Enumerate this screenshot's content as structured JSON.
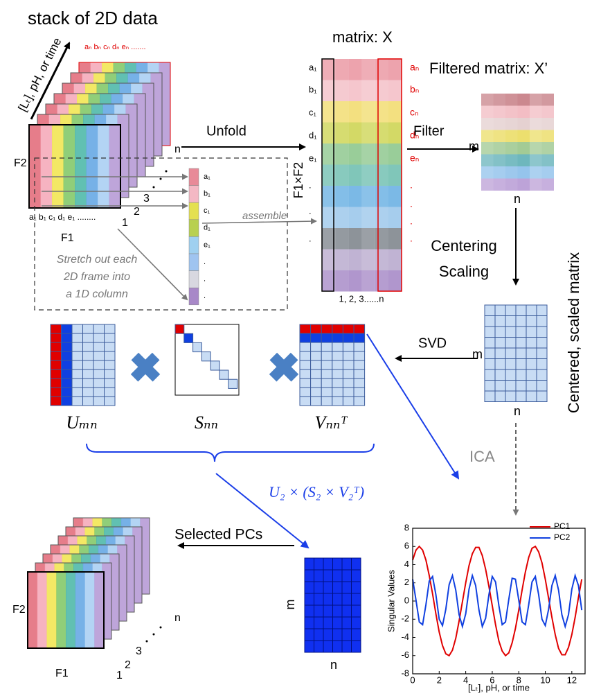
{
  "stack_panel": {
    "title": "stack of 2D data",
    "axis_label": "[Lₜ], pH, or time",
    "top_labels": "aₙ bₙ cₙ dₙ eₙ .......",
    "depth_label": "n",
    "f2": "F2",
    "f1": "F1",
    "front_labels": "a₁ b₁ c₁ d₁ e₁ ........",
    "frame_numbers": [
      "1",
      "2",
      "3"
    ]
  },
  "stretch_box": {
    "caption": [
      "Stretch out each",
      "2D frame into",
      "a 1D column"
    ],
    "column_labels": [
      "a₁",
      "b₁",
      "c₁",
      "d₁",
      "e₁",
      ".",
      ".",
      "."
    ],
    "assemble": "assemble"
  },
  "unfold": "Unfold",
  "matrix_x": {
    "title": "matrix: X",
    "row_label": "F1×F2",
    "left_labels": [
      "a₁",
      "b₁",
      "c₁",
      "d₁",
      "e₁",
      ".",
      ".",
      "."
    ],
    "right_labels": [
      "aₙ",
      "bₙ",
      "cₙ",
      "dₙ",
      "eₙ",
      ".",
      ".",
      ".",
      "."
    ],
    "column_label": "1, 2, 3......n"
  },
  "filter": "Filter",
  "filtered_matrix": {
    "title": "Filtered matrix: X’",
    "m": "m",
    "n": "n"
  },
  "centering": [
    "Centering",
    "Scaling"
  ],
  "centered_matrix": {
    "title": "Centered, scaled matrix",
    "m": "m",
    "n": "n"
  },
  "svd": "SVD",
  "svd_labels": [
    "Uₘₙ",
    "Sₙₙ",
    "Vₙₙᵀ"
  ],
  "reconstruction": "U₂ × (S₂ × V₂ᵀ)",
  "ica": "ICA",
  "selected": {
    "label": "Selected PCs",
    "m": "m",
    "n": "n"
  },
  "output_stack": {
    "f2": "F2",
    "f1": "F1",
    "frame_numbers": [
      "1",
      "2",
      "3"
    ],
    "depth_label": "n"
  },
  "inset_chart": {
    "type": "line",
    "x_label": "[Lₜ], pH, or time",
    "y_label": "Singular Values",
    "legend": "upper right",
    "x": [
      0,
      0.25,
      0.5,
      0.75,
      1,
      1.25,
      1.5,
      1.75,
      2,
      2.25,
      2.5,
      2.75,
      3,
      3.25,
      3.5,
      3.75,
      4,
      4.25,
      4.5,
      4.75,
      5,
      5.25,
      5.5,
      5.75,
      6,
      6.25,
      6.5,
      6.75,
      7,
      7.25,
      7.5,
      7.75,
      8,
      8.25,
      8.5,
      8.75,
      9,
      9.25,
      9.5,
      9.75,
      10,
      10.25,
      10.5,
      10.75,
      11,
      11.25,
      11.5,
      11.75,
      12,
      12.25,
      12.5,
      12.75
    ],
    "series": [
      {
        "name": "PC1",
        "color": "#e00000",
        "values": [
          4.5,
          5.6,
          6.0,
          5.6,
          4.5,
          2.8,
          0.8,
          -1.4,
          -3.4,
          -4.9,
          -5.8,
          -6.0,
          -5.4,
          -4.1,
          -2.2,
          -0.1,
          2.0,
          3.9,
          5.2,
          5.9,
          5.9,
          5.0,
          3.5,
          1.6,
          -0.5,
          -2.6,
          -4.4,
          -5.5,
          -6.0,
          -5.7,
          -4.6,
          -3.0,
          -1.0,
          1.2,
          3.2,
          4.8,
          5.8,
          6.0,
          5.4,
          4.2,
          2.4,
          0.3,
          -1.8,
          -3.7,
          -5.2,
          -5.9,
          -5.9,
          -5.1,
          -3.7,
          -1.8,
          0.4,
          2.4
        ]
      },
      {
        "name": "PC2",
        "color": "#1040e0",
        "values": [
          2.4,
          0.1,
          -2.3,
          -2.6,
          -0.4,
          2.2,
          2.7,
          0.7,
          -2.0,
          -2.7,
          -0.9,
          1.8,
          2.8,
          1.2,
          -1.5,
          -2.8,
          -1.4,
          1.3,
          2.8,
          1.7,
          -1.0,
          -2.8,
          -1.9,
          0.7,
          2.7,
          2.1,
          -0.5,
          -2.6,
          -2.3,
          0.2,
          2.5,
          2.4,
          0.1,
          -2.3,
          -2.6,
          -0.4,
          2.1,
          2.7,
          0.7,
          -2.0,
          -2.7,
          -0.9,
          1.7,
          2.8,
          1.2,
          -1.5,
          -2.8,
          -1.5,
          1.3,
          2.8,
          1.7,
          -1.0
        ]
      }
    ],
    "xlim": [
      0,
      13
    ],
    "ylim": [
      -8,
      8
    ],
    "xticks": [
      0,
      2,
      4,
      6,
      8,
      10,
      12
    ],
    "yticks": [
      -8,
      -6,
      -4,
      -2,
      0,
      2,
      4,
      6,
      8
    ]
  }
}
